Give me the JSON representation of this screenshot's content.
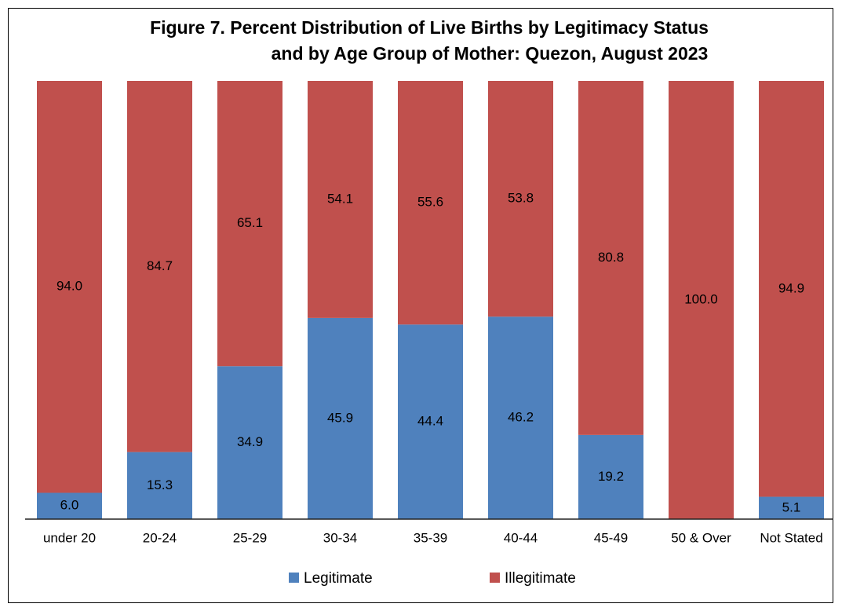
{
  "chart_data": {
    "type": "stacked_bar",
    "title": [
      "Figure 7. Percent Distribution of Live Births by Legitimacy Status",
      "and by Age Group of Mother: Quezon, August 2023"
    ],
    "categories": [
      "under 20",
      "20-24",
      "25-29",
      "30-34",
      "35-39",
      "40-44",
      "45-49",
      "50 & Over",
      "Not Stated"
    ],
    "series": [
      {
        "name": "Legitimate",
        "color": "#4f81bd",
        "values": [
          6.0,
          15.3,
          34.9,
          45.9,
          44.4,
          46.2,
          19.2,
          0,
          5.1
        ],
        "value_labels": [
          "6.0",
          "15.3",
          "34.9",
          "45.9",
          "44.4",
          "46.2",
          "19.2",
          null,
          "5.1"
        ]
      },
      {
        "name": "Illegitimate",
        "color": "#c0504d",
        "values": [
          94.0,
          84.7,
          65.1,
          54.1,
          55.6,
          53.8,
          80.8,
          100.0,
          94.9
        ],
        "value_labels": [
          "94.0",
          "84.7",
          "65.1",
          "54.1",
          "55.6",
          "53.8",
          "80.8",
          "100.0",
          "94.9"
        ]
      }
    ],
    "ylim": [
      0,
      100
    ],
    "legend": "bottom"
  }
}
